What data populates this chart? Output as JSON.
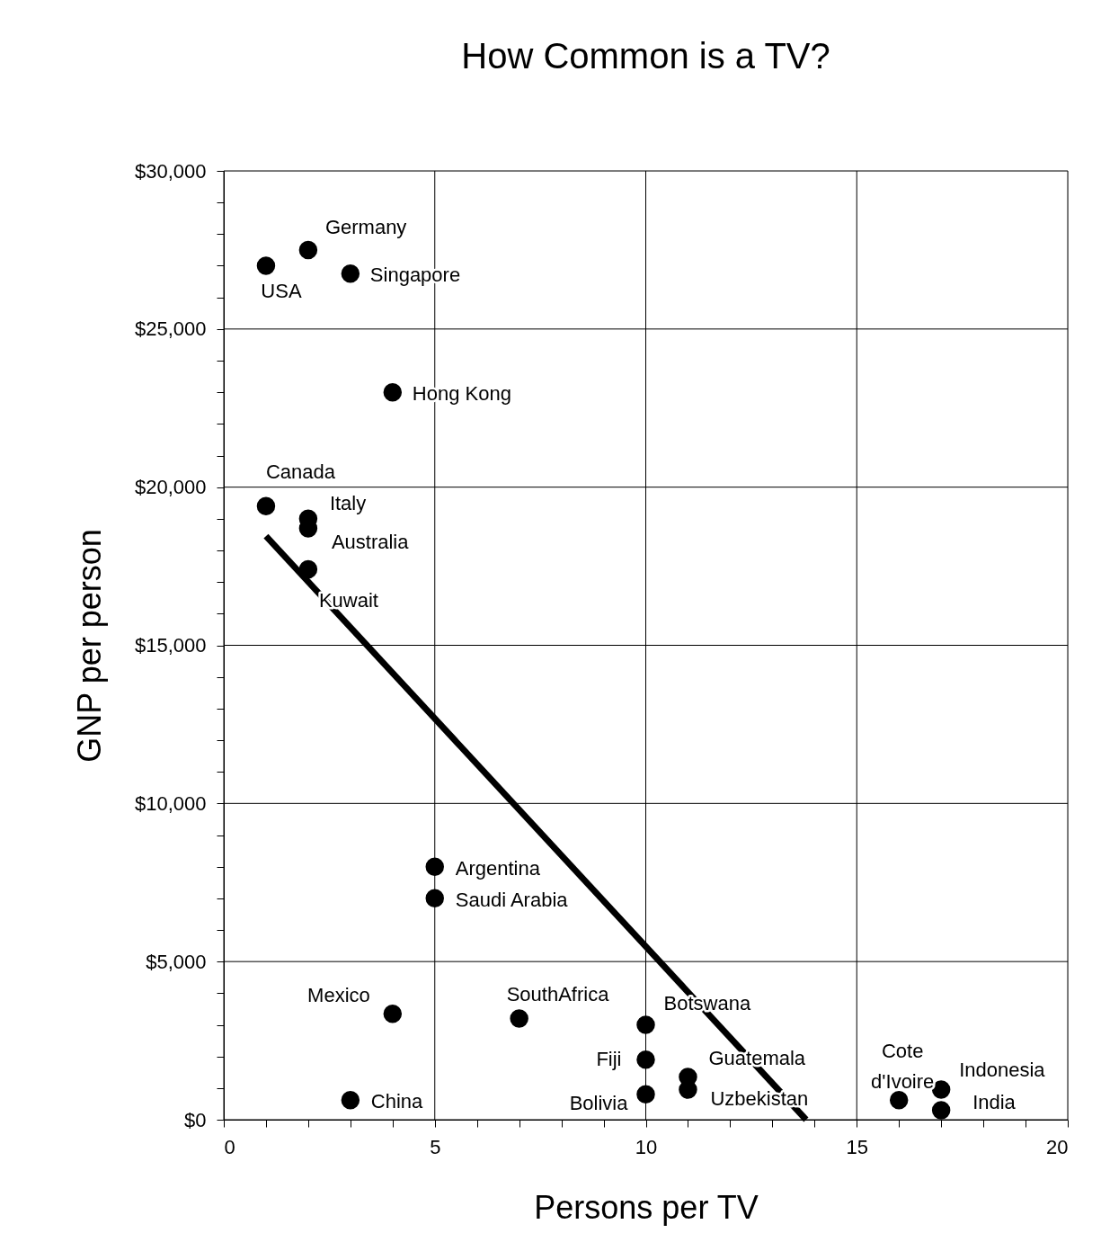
{
  "chart_data": {
    "type": "scatter",
    "title": "How Common is a TV?",
    "xlabel": "Persons per TV",
    "ylabel": "GNP per person",
    "xlim": [
      0,
      20
    ],
    "ylim": [
      0,
      30000
    ],
    "xticks": [
      0,
      {
        "value": 1,
        "label": null
      },
      {
        "value": 2,
        "label": null
      },
      {
        "value": 3,
        "label": null
      },
      {
        "value": 4,
        "label": null
      },
      5,
      {
        "value": 6,
        "label": null
      },
      {
        "value": 7,
        "label": null
      },
      {
        "value": 8,
        "label": null
      },
      {
        "value": 9,
        "label": null
      },
      10,
      {
        "value": 11,
        "label": null
      },
      {
        "value": 12,
        "label": null
      },
      {
        "value": 13,
        "label": null
      },
      {
        "value": 14,
        "label": null
      },
      15,
      {
        "value": 16,
        "label": null
      },
      {
        "value": 17,
        "label": null
      },
      {
        "value": 18,
        "label": null
      },
      {
        "value": 19,
        "label": null
      },
      20
    ],
    "yticks": [
      {
        "value": 0,
        "label": "$0"
      },
      {
        "value": 1000,
        "label": null
      },
      {
        "value": 2000,
        "label": null
      },
      {
        "value": 3000,
        "label": null
      },
      {
        "value": 4000,
        "label": null
      },
      {
        "value": 5000,
        "label": "$5,000"
      },
      {
        "value": 6000,
        "label": null
      },
      {
        "value": 7000,
        "label": null
      },
      {
        "value": 8000,
        "label": null
      },
      {
        "value": 9000,
        "label": null
      },
      {
        "value": 10000,
        "label": "$10,000"
      },
      {
        "value": 11000,
        "label": null
      },
      {
        "value": 12000,
        "label": null
      },
      {
        "value": 13000,
        "label": null
      },
      {
        "value": 14000,
        "label": null
      },
      {
        "value": 15000,
        "label": "$15,000"
      },
      {
        "value": 16000,
        "label": null
      },
      {
        "value": 17000,
        "label": null
      },
      {
        "value": 18000,
        "label": null
      },
      {
        "value": 19000,
        "label": null
      },
      {
        "value": 20000,
        "label": "$20,000"
      },
      {
        "value": 21000,
        "label": null
      },
      {
        "value": 22000,
        "label": null
      },
      {
        "value": 23000,
        "label": null
      },
      {
        "value": 24000,
        "label": null
      },
      {
        "value": 25000,
        "label": "$25,000"
      },
      {
        "value": 26000,
        "label": null
      },
      {
        "value": 27000,
        "label": null
      },
      {
        "value": 28000,
        "label": null
      },
      {
        "value": 29000,
        "label": null
      },
      {
        "value": 30000,
        "label": "$30,000"
      }
    ],
    "grid": true,
    "marker": "circle",
    "series": [
      {
        "color": "#000000",
        "x": [
          1,
          2,
          3,
          4,
          1,
          2,
          2,
          2,
          5,
          5,
          4,
          7,
          10,
          10,
          11,
          11,
          10,
          3,
          16,
          17,
          17
        ],
        "values": [
          27000,
          27500,
          26750,
          23000,
          19400,
          19000,
          18700,
          17400,
          8000,
          7000,
          3350,
          3200,
          3000,
          1900,
          1350,
          950,
          800,
          620,
          620,
          950,
          300
        ]
      },
      {
        "type": "line",
        "color": "#000000",
        "x": [
          1,
          13.8
        ],
        "values": [
          18450,
          0
        ],
        "marker": "none",
        "line_style": "solid"
      }
    ],
    "annotations": [
      {
        "text": "USA",
        "x": 1,
        "y": 27000
      },
      {
        "text": "Germany",
        "x": 2,
        "y": 27500
      },
      {
        "text": "Singapore",
        "x": 3,
        "y": 26750
      },
      {
        "text": "Hong Kong",
        "x": 4,
        "y": 23000
      },
      {
        "text": "Canada",
        "x": 1,
        "y": 19400
      },
      {
        "text": "Italy",
        "x": 2,
        "y": 19000
      },
      {
        "text": "Australia",
        "x": 2,
        "y": 18700
      },
      {
        "text": "Kuwait",
        "x": 2,
        "y": 17400
      },
      {
        "text": "Argentina",
        "x": 5,
        "y": 8000
      },
      {
        "text": "Saudi  Arabia",
        "x": 5,
        "y": 7000
      },
      {
        "text": "Mexico",
        "x": 4,
        "y": 3350
      },
      {
        "text": "SouthAfrica",
        "x": 7,
        "y": 3200
      },
      {
        "text": "Botswana",
        "x": 10,
        "y": 3000
      },
      {
        "text": "Fiji",
        "x": 10,
        "y": 1900
      },
      {
        "text": "Guatemala",
        "x": 11,
        "y": 1350
      },
      {
        "text": "Uzbekistan",
        "x": 11,
        "y": 950
      },
      {
        "text": "Bolivia",
        "x": 10,
        "y": 800
      },
      {
        "text": "China",
        "x": 3,
        "y": 620
      },
      {
        "text": "Cote\nd'Ivoire",
        "x": 16,
        "y": 620
      },
      {
        "text": "Indonesia",
        "x": 17,
        "y": 950
      },
      {
        "text": "India",
        "x": 17,
        "y": 300
      }
    ]
  }
}
